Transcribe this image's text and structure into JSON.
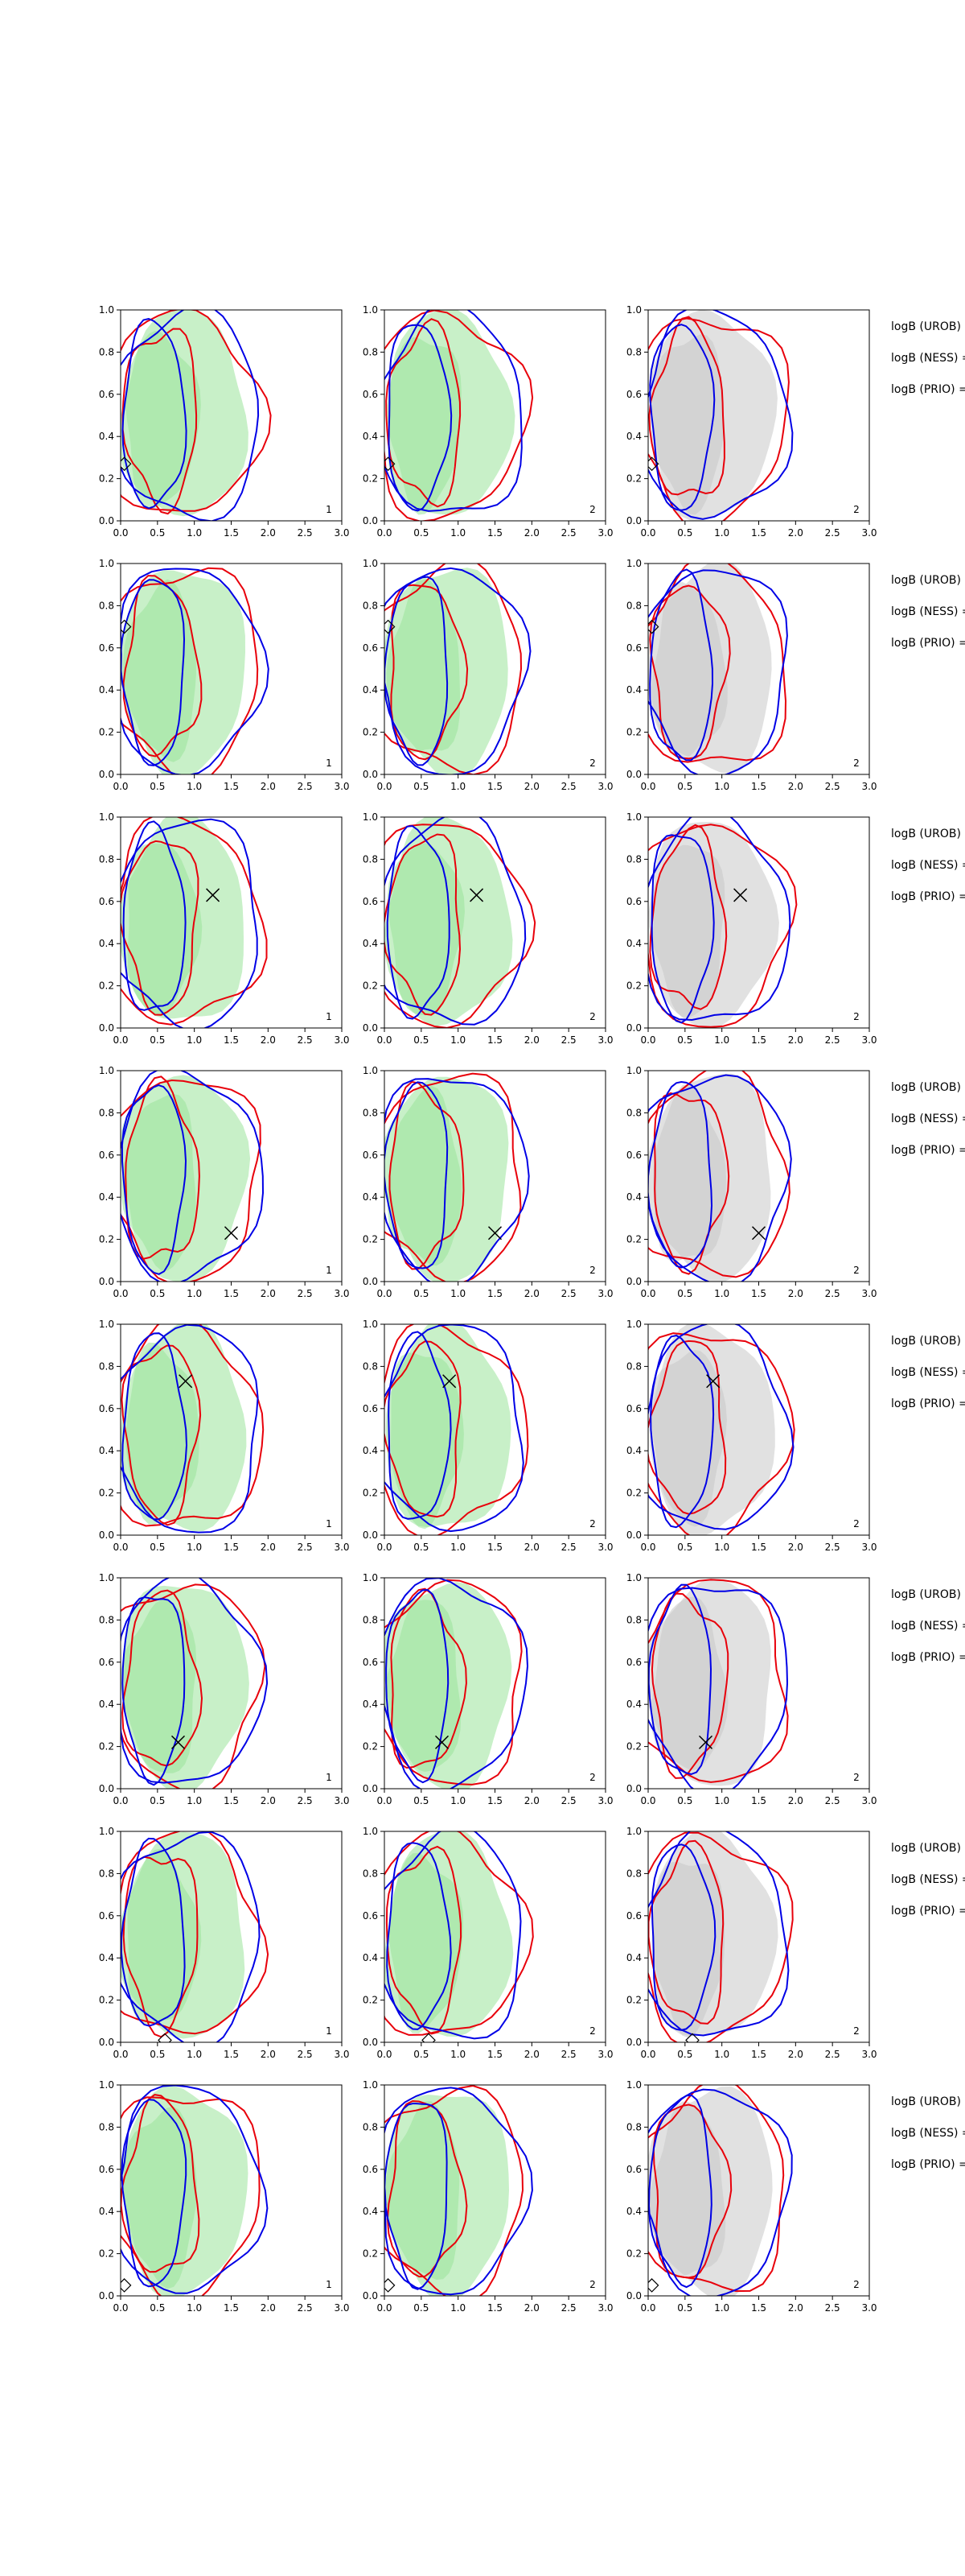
{
  "chart_data": {
    "type": "contour",
    "layout": {
      "rows": 8,
      "columns": 3
    },
    "x_axis": {
      "range": [
        0,
        3
      ],
      "ticks": [
        "0.0",
        "0.5",
        "1.0",
        "1.5",
        "2.0",
        "2.5",
        "3.0"
      ]
    },
    "y_axis": {
      "range": [
        0,
        1
      ],
      "ticks": [
        "0.0",
        "0.2",
        "0.4",
        "0.6",
        "0.8",
        "1.0"
      ]
    },
    "colors": {
      "red_contour": "#e8000b",
      "blue_contour": "#0000e6",
      "green_fill": "#9be39b",
      "gray_fill": "#c8c8c8"
    },
    "column_numbers": [
      "1",
      "2",
      "2"
    ],
    "side_labels": [
      "logB (UROB) =",
      "logB (NESS) =",
      "logB (PRIO) ="
    ],
    "rows": [
      {
        "marker": {
          "symbol": "diamond",
          "x": 0.05,
          "y": 0.27
        }
      },
      {
        "marker": {
          "symbol": "diamond",
          "x": 0.05,
          "y": 0.7
        }
      },
      {
        "marker": {
          "symbol": "cross",
          "x": 1.25,
          "y": 0.63
        }
      },
      {
        "marker": {
          "symbol": "cross",
          "x": 1.5,
          "y": 0.23
        }
      },
      {
        "marker": {
          "symbol": "cross",
          "x": 0.88,
          "y": 0.73
        }
      },
      {
        "marker": {
          "symbol": "cross",
          "x": 0.78,
          "y": 0.22
        }
      },
      {
        "marker": {
          "symbol": "diamond",
          "x": 0.6,
          "y": 0.01
        }
      },
      {
        "marker": {
          "symbol": "diamond",
          "x": 0.05,
          "y": 0.05
        }
      }
    ]
  }
}
